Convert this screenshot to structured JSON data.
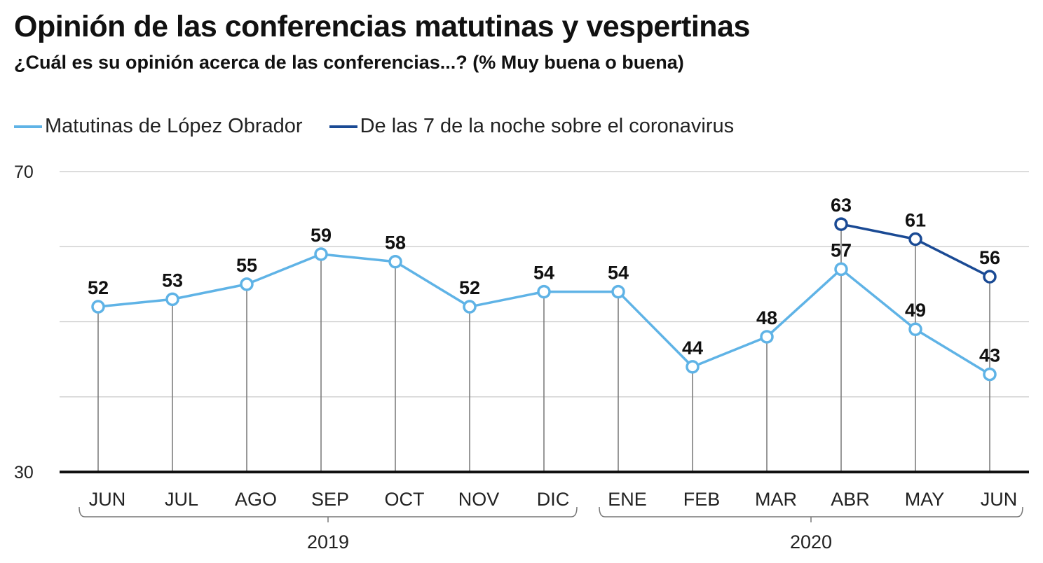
{
  "chart_data": {
    "type": "line",
    "title": "Opinión de las conferencias matutinas y vespertinas",
    "subtitle": "¿Cuál es su opinión acerca de las conferencias...?  (% Muy buena o buena)",
    "categories": [
      "JUN",
      "JUL",
      "AGO",
      "SEP",
      "OCT",
      "NOV",
      "DIC",
      "ENE",
      "FEB",
      "MAR",
      "ABR",
      "MAY",
      "JUN"
    ],
    "year_groups": [
      {
        "label": "2019",
        "from": 0,
        "to": 6
      },
      {
        "label": "2020",
        "from": 7,
        "to": 12
      }
    ],
    "series": [
      {
        "name": "Matutinas de López Obrador",
        "color": "#5fb3e6",
        "values": [
          52,
          53,
          55,
          59,
          58,
          52,
          54,
          54,
          44,
          48,
          57,
          49,
          43
        ]
      },
      {
        "name": "De las 7 de la noche sobre el coronavirus",
        "color": "#1a4a94",
        "values": [
          null,
          null,
          null,
          null,
          null,
          null,
          null,
          null,
          null,
          null,
          63,
          61,
          56
        ]
      }
    ],
    "ylim": [
      30,
      70
    ],
    "yticks": [
      30,
      40,
      50,
      60,
      70
    ],
    "ytick_labels_shown": [
      "30",
      "70"
    ],
    "grid": true,
    "legend_position": "top-left"
  }
}
